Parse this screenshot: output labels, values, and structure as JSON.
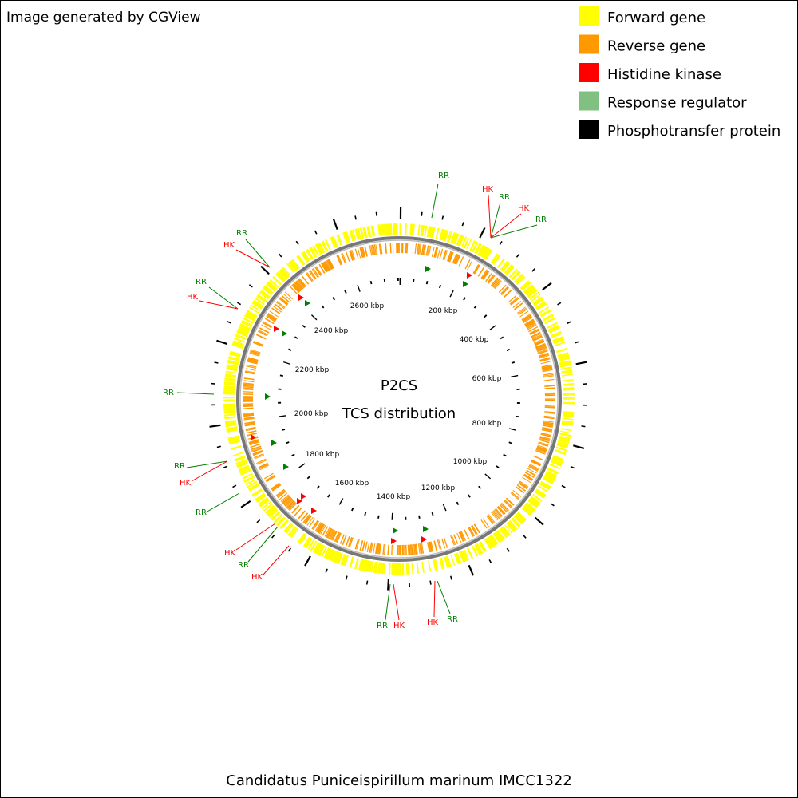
{
  "header": "Image generated by CGView",
  "legend": [
    {
      "label": "Forward gene",
      "color": "#ffff00"
    },
    {
      "label": "Reverse gene",
      "color": "#ff9900"
    },
    {
      "label": "Histidine kinase",
      "color": "#ff0000"
    },
    {
      "label": "Response regulator",
      "color": "#80c080"
    },
    {
      "label": "Phosphotransfer protein",
      "color": "#000000"
    }
  ],
  "center": {
    "title": "P2CS",
    "subtitle": "TCS distribution"
  },
  "map": {
    "tick_labels": [
      "200 kbp",
      "400 kbp",
      "600 kbp",
      "800 kbp",
      "1000 kbp",
      "1200 kbp",
      "1400 kbp",
      "1600 kbp",
      "1800 kbp",
      "2000 kbp",
      "2200 kbp",
      "2400 kbp",
      "2600 kbp"
    ],
    "features": [
      {
        "label": "RR",
        "color": "#008000"
      },
      {
        "label": "HK",
        "color": "#ff0000"
      },
      {
        "label": "RR",
        "color": "#008000"
      },
      {
        "label": "HK",
        "color": "#ff0000"
      },
      {
        "label": "RR",
        "color": "#008000"
      },
      {
        "label": "RR",
        "color": "#008000"
      },
      {
        "label": "HK",
        "color": "#ff0000"
      },
      {
        "label": "RR",
        "color": "#008000"
      },
      {
        "label": "HK",
        "color": "#ff0000"
      },
      {
        "label": "RR",
        "color": "#008000"
      },
      {
        "label": "RR",
        "color": "#008000"
      },
      {
        "label": "HK",
        "color": "#ff0000"
      },
      {
        "label": "RR",
        "color": "#008000"
      },
      {
        "label": "HK",
        "color": "#ff0000"
      },
      {
        "label": "RR",
        "color": "#008000"
      },
      {
        "label": "HK",
        "color": "#ff0000"
      },
      {
        "label": "RR",
        "color": "#008000"
      },
      {
        "label": "HK",
        "color": "#ff0000"
      },
      {
        "label": "HK",
        "color": "#ff0000"
      },
      {
        "label": "RR",
        "color": "#008000"
      }
    ]
  },
  "footer": "Candidatus Puniceispirillum marinum IMCC1322"
}
